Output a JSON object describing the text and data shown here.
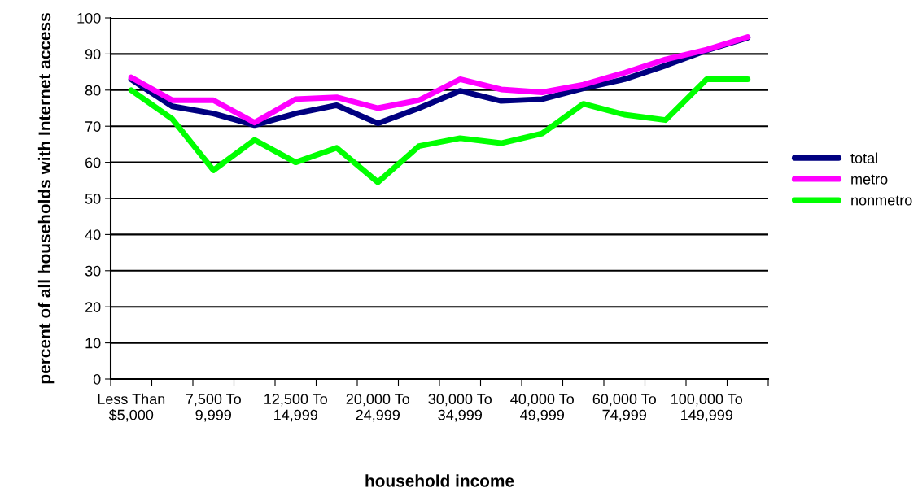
{
  "chart_data": {
    "type": "line",
    "xlabel": "household income",
    "ylabel": "percent of all households with Internet access",
    "categories": [
      "Less Than $5,000",
      null,
      "7,500 To 9,999",
      null,
      "12,500 To 14,999",
      null,
      "20,000 To 24,999",
      null,
      "30,000 To 34,999",
      null,
      "40,000 To 49,999",
      null,
      "60,000 To 74,999",
      null,
      "100,000 To 149,999",
      null
    ],
    "series": [
      {
        "name": "total",
        "color": "#000080",
        "values": [
          83,
          75.5,
          73.5,
          70.3,
          73.5,
          75.8,
          70.8,
          75,
          79.8,
          77,
          77.5,
          80.5,
          83,
          86.8,
          91,
          94.5
        ]
      },
      {
        "name": "metro",
        "color": "#ff00ff",
        "values": [
          83.5,
          77.2,
          77.2,
          71,
          77.5,
          78,
          75,
          77.2,
          83,
          80.2,
          79.4,
          81.5,
          84.8,
          88.5,
          91.2,
          94.7
        ]
      },
      {
        "name": "nonmetro",
        "color": "#00ff00",
        "values": [
          80,
          72,
          57.8,
          66.2,
          60,
          64,
          54.5,
          64.5,
          66.7,
          65.3,
          68,
          76.2,
          73.2,
          71.7,
          83,
          83
        ]
      }
    ],
    "ylim": [
      0,
      100
    ],
    "yticks": [
      0,
      10,
      20,
      30,
      40,
      50,
      60,
      70,
      80,
      90,
      100
    ],
    "grid": "y",
    "legend": "right",
    "marker": "none",
    "line_style": "solid"
  }
}
